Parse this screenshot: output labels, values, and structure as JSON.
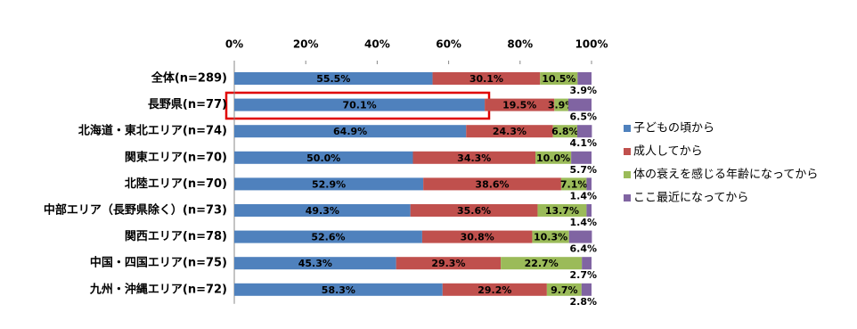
{
  "chart_data": {
    "type": "stacked-bar-horizontal",
    "categories": [
      "全体(n=289)",
      "長野県(n=77)",
      "北海道・東北エリア(n=74)",
      "関東エリア(n=70)",
      "北陸エリア(n=70)",
      "中部エリア（長野県除く）(n=73)",
      "関西エリア(n=78)",
      "中国・四国エリア(n=75)",
      "九州・沖縄エリア(n=72)"
    ],
    "series": [
      {
        "name": "子どもの頃から",
        "color": "#4f81bd",
        "values": [
          55.5,
          70.1,
          64.9,
          50,
          52.9,
          49.3,
          52.6,
          45.3,
          58.3
        ],
        "value_labels": [
          "55.5%",
          "70.1%",
          "64.9%",
          "50.0%",
          "52.9%",
          "49.3%",
          "52.6%",
          "45.3%",
          "58.3%"
        ]
      },
      {
        "name": "成人してから",
        "color": "#c0504d",
        "values": [
          30.1,
          19.5,
          24.3,
          34.3,
          38.6,
          35.6,
          30.8,
          29.3,
          29.2
        ],
        "value_labels": [
          "30.1%",
          "19.5%",
          "24.3%",
          "34.3%",
          "38.6%",
          "35.6%",
          "30.8%",
          "29.3%",
          "29.2%"
        ]
      },
      {
        "name": "体の衰えを感じる年齢になってから",
        "color": "#9bbb59",
        "values": [
          10.5,
          3.9,
          6.8,
          10,
          7.1,
          13.7,
          10.3,
          22.7,
          9.7
        ],
        "value_labels": [
          "10.5%",
          "3.9%",
          "6.8%",
          "10.0%",
          "7.1%",
          "13.7%",
          "10.3%",
          "22.7%",
          "9.7%"
        ]
      },
      {
        "name": "ここ最近になってから",
        "color": "#8064a2",
        "values": [
          3.9,
          6.5,
          4.1,
          5.7,
          1.4,
          1.4,
          6.4,
          2.7,
          2.8
        ],
        "value_labels": [
          "3.9%",
          "6.5%",
          "4.1%",
          "5.7%",
          "1.4%",
          "1.4%",
          "6.4%",
          "2.7%",
          "2.8%"
        ]
      }
    ],
    "xlim": [
      0,
      100
    ],
    "xticks": [
      {
        "value": 0,
        "label": "0%"
      },
      {
        "value": 20,
        "label": "20%"
      },
      {
        "value": 40,
        "label": "40%"
      },
      {
        "value": 60,
        "label": "60%"
      },
      {
        "value": 80,
        "label": "80%"
      },
      {
        "value": 100,
        "label": "100%"
      }
    ],
    "legend": "right"
  }
}
